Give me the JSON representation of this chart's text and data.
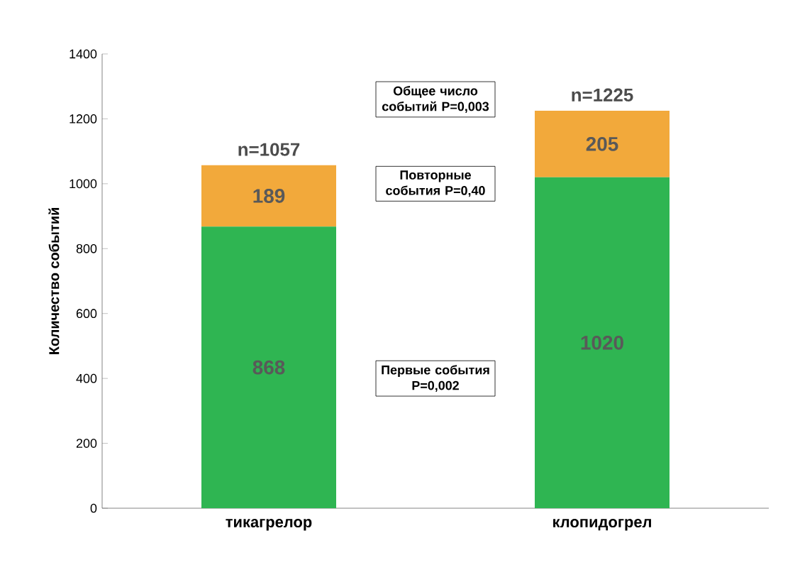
{
  "chart_data": {
    "type": "bar",
    "stacked": true,
    "ylabel": "Количество событий",
    "categories": [
      "тикагрелор",
      "клопидогрел"
    ],
    "series": [
      {
        "color": "#2fb552",
        "values": [
          868,
          1020
        ]
      },
      {
        "color": "#f2a93b",
        "values": [
          189,
          205
        ]
      }
    ],
    "ylim": [
      0,
      1400
    ],
    "yticks": [
      0,
      200,
      400,
      600,
      800,
      1000,
      1200,
      1400
    ],
    "data_labels": true,
    "totals": [
      "n=1057",
      "n=1225"
    ],
    "annotations": [
      "Общее число событий P=0,003",
      "Повторные события P=0,40",
      "Первые события P=0,002"
    ]
  }
}
